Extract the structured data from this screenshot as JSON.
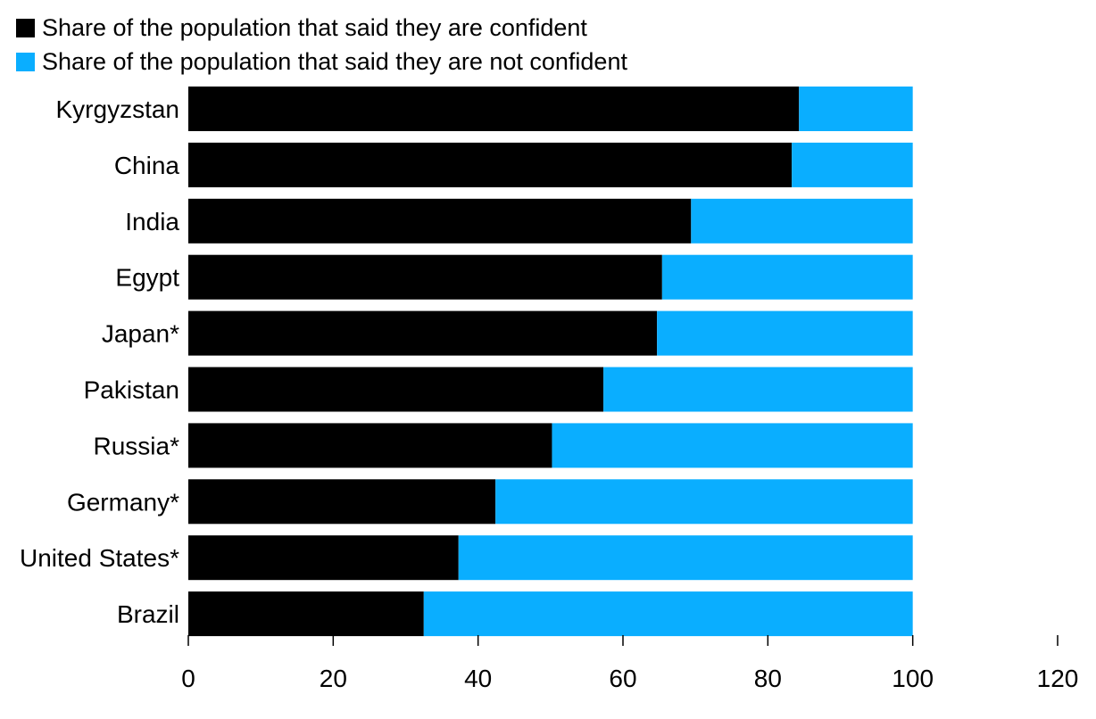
{
  "chart_data": {
    "type": "bar",
    "orientation": "horizontal",
    "stacked": true,
    "categories": [
      "Kyrgyzstan",
      "China",
      "India",
      "Egypt",
      "Japan*",
      "Pakistan",
      "Russia*",
      "Germany*",
      "United States*",
      "Brazil"
    ],
    "series": [
      {
        "name": "Share of the population that said they are confident",
        "color": "#000000",
        "values": [
          84.3,
          83.3,
          69.4,
          65.4,
          64.7,
          57.3,
          50.2,
          42.4,
          37.3,
          32.5
        ]
      },
      {
        "name": "Share of the population that said they are not confident",
        "color": "#0aaeff",
        "values": [
          15.7,
          16.7,
          30.6,
          34.6,
          35.3,
          42.7,
          49.8,
          57.6,
          62.7,
          67.5
        ]
      }
    ],
    "xlim": [
      0,
      120
    ],
    "xticks": [
      0,
      20,
      40,
      60,
      80,
      100,
      120
    ],
    "xlabel": "",
    "ylabel": "",
    "grid": false,
    "legend_position": "top-left"
  }
}
